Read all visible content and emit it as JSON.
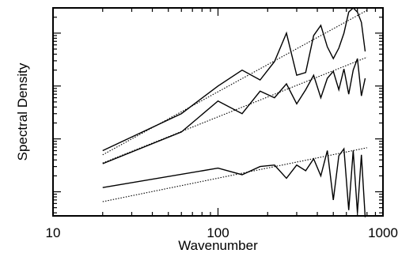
{
  "chart_data": {
    "type": "line",
    "title": "",
    "xlabel": "Wavenumber",
    "ylabel": "Spectral Density",
    "x_scale": "log",
    "y_scale": "log",
    "xlim": [
      10,
      1000
    ],
    "ylim": [
      0.00035,
      3
    ],
    "x_tick_labels": [
      "10",
      "100",
      "1000"
    ],
    "x_major_ticks": [
      10,
      100,
      1000
    ],
    "y_major_ticks": [
      0.01,
      1
    ],
    "grid": false,
    "legend": "none",
    "series": [
      {
        "x": [
          20,
          60,
          100,
          140,
          180,
          220,
          260,
          300,
          340,
          380,
          420,
          460,
          500,
          540,
          580,
          620,
          660,
          700,
          740,
          780
        ],
        "y": [
          0.006,
          0.03,
          0.1,
          0.2,
          0.13,
          0.29,
          1.0,
          0.16,
          0.18,
          0.9,
          1.4,
          0.55,
          0.33,
          0.52,
          1.0,
          2.5,
          3.0,
          2.5,
          1.6,
          0.45
        ]
      },
      {
        "x": [
          20,
          60,
          100,
          140,
          180,
          220,
          260,
          300,
          340,
          380,
          420,
          460,
          500,
          540,
          580,
          620,
          660,
          700,
          740,
          780
        ],
        "y": [
          0.0034,
          0.0135,
          0.052,
          0.03,
          0.08,
          0.06,
          0.11,
          0.046,
          0.085,
          0.16,
          0.06,
          0.14,
          0.19,
          0.085,
          0.21,
          0.07,
          0.2,
          0.33,
          0.065,
          0.14
        ]
      },
      {
        "x": [
          20,
          100,
          140,
          180,
          220,
          260,
          300,
          340,
          380,
          420,
          460,
          500,
          540,
          580,
          620,
          660,
          700,
          740,
          780
        ],
        "y": [
          0.0012,
          0.0028,
          0.0021,
          0.003,
          0.0032,
          0.0018,
          0.0032,
          0.0025,
          0.0042,
          0.002,
          0.006,
          0.0007,
          0.0048,
          0.0065,
          0.00045,
          0.006,
          0.0004,
          0.005,
          0.00033
        ]
      }
    ],
    "fit_lines": [
      {
        "x": [
          20,
          800
        ],
        "y": [
          0.005,
          2.7
        ]
      },
      {
        "x": [
          20,
          800
        ],
        "y": [
          0.0035,
          0.35
        ]
      },
      {
        "x": [
          20,
          800
        ],
        "y": [
          0.00065,
          0.0068
        ]
      }
    ]
  }
}
